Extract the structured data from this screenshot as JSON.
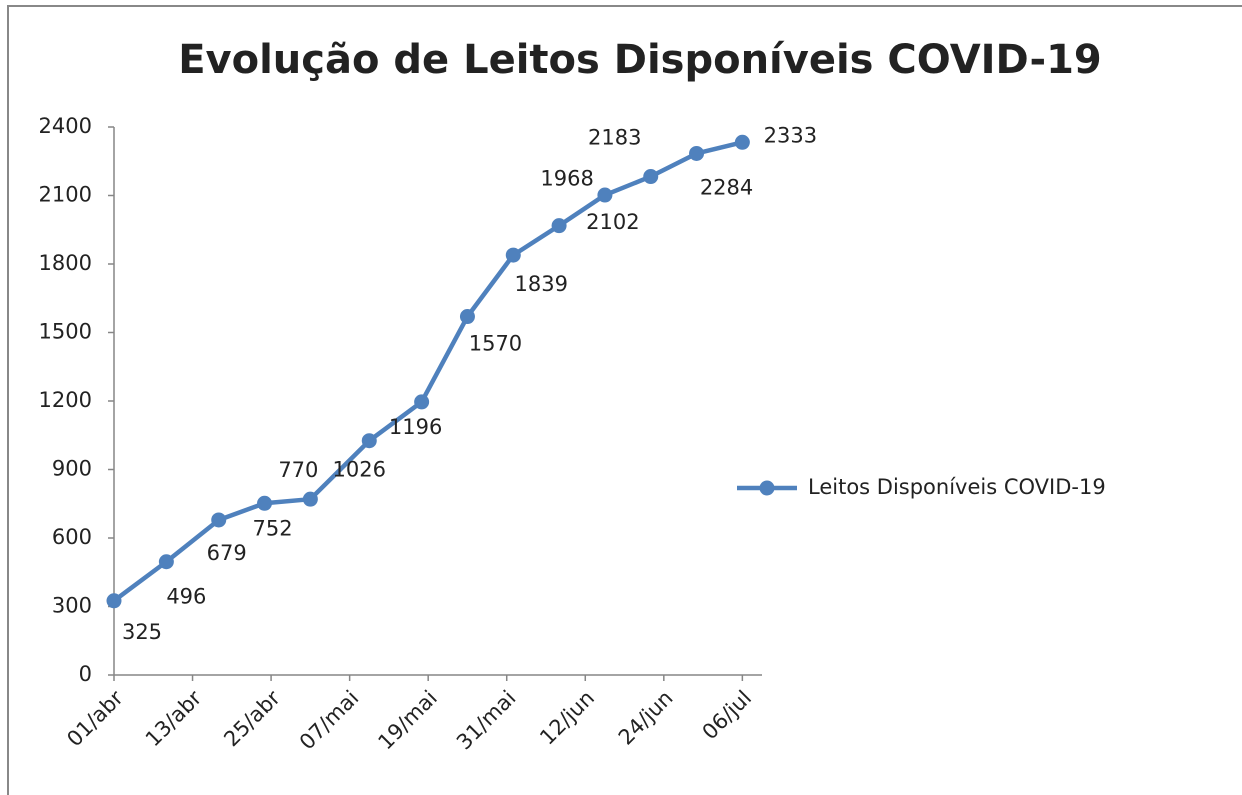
{
  "chart_data": {
    "type": "line",
    "title": "Evolução de Leitos Disponíveis COVID-19",
    "x": [
      0,
      8,
      16,
      23,
      30,
      39,
      47,
      54,
      61,
      68,
      75,
      82,
      89,
      96
    ],
    "series": [
      {
        "name": "Leitos Disponíveis COVID-19",
        "color": "#4f81bd",
        "values": [
          325,
          496,
          679,
          752,
          770,
          1026,
          1196,
          1570,
          1839,
          1968,
          2102,
          2183,
          2284,
          2333
        ]
      }
    ],
    "xlim": [
      0,
      99
    ],
    "xticks": [
      {
        "value": 0,
        "label": "01/abr"
      },
      {
        "value": 12,
        "label": "13/abr"
      },
      {
        "value": 24,
        "label": "25/abr"
      },
      {
        "value": 36,
        "label": "07/mai"
      },
      {
        "value": 48,
        "label": "19/mai"
      },
      {
        "value": 60,
        "label": "31/mai"
      },
      {
        "value": 72,
        "label": "12/jun"
      },
      {
        "value": 84,
        "label": "24/jun"
      },
      {
        "value": 96,
        "label": "06/jul"
      }
    ],
    "ylim": [
      0,
      2400
    ],
    "yticks": [
      0,
      300,
      600,
      900,
      1200,
      1500,
      1800,
      2100,
      2400
    ],
    "legend": "right",
    "grid": false
  }
}
